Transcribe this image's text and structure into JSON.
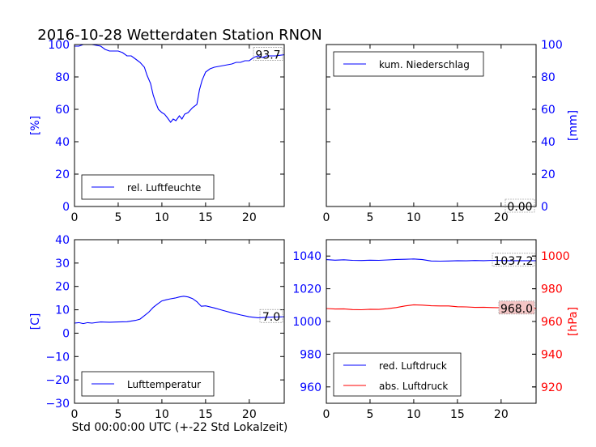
{
  "title": "2016-10-28 Wetterdaten Station RNON",
  "xlabel": "Std 00:00:00 UTC (+-22 Std Lokalzeit)",
  "colors": {
    "primary": "#0000ff",
    "secondary": "#ff0000",
    "axis": "#000000"
  },
  "chart_data": [
    {
      "id": "humidity",
      "type": "line",
      "ylabel": "[%]",
      "xlim": [
        0,
        24
      ],
      "ylim": [
        0,
        100
      ],
      "xticks": [
        0,
        5,
        10,
        15,
        20
      ],
      "yticks": [
        0,
        20,
        40,
        60,
        80,
        100
      ],
      "ylabel_side": "left",
      "legend": "bottom-left",
      "badge": "93.7",
      "series": [
        {
          "name": "rel. Luftfeuchte",
          "color": "#0000ff",
          "x": [
            0,
            0.5,
            1,
            2,
            3,
            3.5,
            4,
            5,
            5.5,
            6,
            6.5,
            7,
            7.5,
            8,
            8.3,
            8.7,
            9,
            9.3,
            9.6,
            10,
            10.3,
            10.6,
            11,
            11.3,
            11.6,
            12,
            12.3,
            12.6,
            13,
            13.5,
            14,
            14.3,
            14.6,
            15,
            15.5,
            16,
            17,
            18,
            18.5,
            19,
            19.5,
            20,
            20.5,
            21,
            21.5,
            22,
            23,
            24
          ],
          "y": [
            99,
            99,
            100,
            100,
            99,
            97,
            96,
            96,
            95,
            93,
            93,
            91,
            89,
            86,
            81,
            76,
            69,
            64,
            60,
            58,
            57,
            55,
            52,
            54,
            53,
            56,
            54,
            57,
            58,
            61,
            63,
            72,
            78,
            83,
            85,
            86,
            87,
            88,
            89,
            89,
            90,
            90,
            92,
            93,
            92,
            93,
            93,
            93.7
          ]
        }
      ]
    },
    {
      "id": "precipitation",
      "type": "line",
      "ylabel": "[mm]",
      "xlim": [
        0,
        24
      ],
      "ylim": [
        0,
        100
      ],
      "xticks": [
        0,
        5,
        10,
        15,
        20
      ],
      "yticks": [
        0,
        20,
        40,
        60,
        80,
        100
      ],
      "ylabel_side": "right",
      "legend": "top-left",
      "badge": "0.00",
      "series": [
        {
          "name": "kum. Niederschlag",
          "color": "#0000ff",
          "x": [
            0,
            24
          ],
          "y": [
            0,
            0
          ]
        }
      ]
    },
    {
      "id": "temperature",
      "type": "line",
      "ylabel": "[C]",
      "xlim": [
        0,
        24
      ],
      "ylim": [
        -30,
        40
      ],
      "xticks": [
        0,
        5,
        10,
        15,
        20
      ],
      "yticks": [
        -30,
        -20,
        -10,
        0,
        10,
        20,
        30,
        40
      ],
      "ylabel_side": "left",
      "legend": "bottom-left",
      "badge": "7.0",
      "series": [
        {
          "name": "Lufttemperatur",
          "color": "#0000ff",
          "x": [
            0,
            0.5,
            1,
            1.5,
            2,
            3,
            4,
            5,
            6,
            7,
            7.5,
            8,
            8.5,
            9,
            9.5,
            10,
            10.5,
            11,
            11.5,
            12,
            12.5,
            13,
            13.5,
            14,
            14.5,
            15,
            16,
            17,
            18,
            19,
            20,
            21,
            22,
            23,
            24
          ],
          "y": [
            4.3,
            4.5,
            4.1,
            4.5,
            4.3,
            4.8,
            4.7,
            4.8,
            4.9,
            5.5,
            6,
            7.5,
            9,
            11,
            12.5,
            13.8,
            14.3,
            14.7,
            15,
            15.5,
            15.8,
            15.5,
            14.8,
            13.5,
            11.5,
            11.7,
            10.8,
            9.7,
            8.7,
            7.8,
            7,
            6.6,
            6.8,
            6.9,
            7.0
          ]
        }
      ]
    },
    {
      "id": "pressure",
      "type": "line",
      "ylabel": "[hPa]",
      "xlim": [
        0,
        24
      ],
      "ylim": [
        950,
        1050
      ],
      "ylim_right": [
        910,
        1010
      ],
      "xticks": [
        0,
        5,
        10,
        15,
        20
      ],
      "yticks": [
        960,
        980,
        1000,
        1020,
        1040
      ],
      "yticks_right": [
        920,
        940,
        960,
        980,
        1000
      ],
      "ylabel_side": "right",
      "legend": "bottom-left",
      "badge": "1037.2",
      "badge_right": "968.0",
      "series": [
        {
          "name": "red. Luftdruck",
          "color": "#0000ff",
          "axis": "left",
          "x": [
            0,
            1,
            2,
            3,
            4,
            5,
            6,
            7,
            8,
            9,
            10,
            11,
            12,
            13,
            14,
            15,
            16,
            17,
            18,
            19,
            20,
            21,
            22,
            23,
            24
          ],
          "y": [
            1037.8,
            1037.5,
            1037.7,
            1037.4,
            1037.3,
            1037.5,
            1037.4,
            1037.6,
            1037.9,
            1038.0,
            1038.2,
            1037.8,
            1037.0,
            1036.9,
            1037.0,
            1037.2,
            1037.1,
            1037.3,
            1037.2,
            1037.4,
            1037.3,
            1037.2,
            1037.2,
            1037.2,
            1037.2
          ]
        },
        {
          "name": "abs. Luftdruck",
          "color": "#ff0000",
          "axis": "right",
          "x": [
            0,
            1,
            2,
            3,
            4,
            5,
            6,
            7,
            8,
            9,
            10,
            11,
            12,
            13,
            14,
            15,
            16,
            17,
            18,
            19,
            20,
            21,
            22,
            23,
            24
          ],
          "y": [
            967.9,
            967.6,
            967.7,
            967.3,
            967.2,
            967.5,
            967.4,
            967.8,
            968.5,
            969.5,
            970.2,
            970.0,
            969.6,
            969.5,
            969.5,
            969.0,
            968.9,
            968.6,
            968.7,
            968.5,
            968.4,
            968.2,
            968.1,
            968.0,
            968.0
          ]
        }
      ]
    }
  ]
}
